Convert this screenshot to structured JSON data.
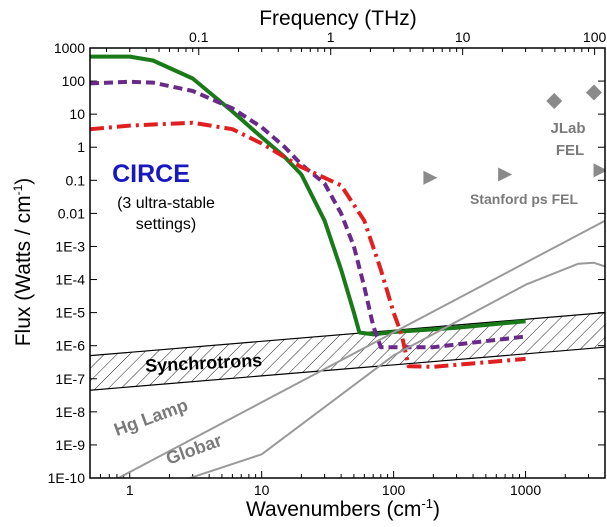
{
  "chart_data": {
    "type": "line",
    "x_scale": "log",
    "y_scale": "log",
    "xlabel": "Wavenumbers (cm⁻¹)",
    "ylabel": "Flux (Watts / cm⁻¹)",
    "top_axis_label": "Frequency (THz)",
    "xlim": [
      0.5,
      4000
    ],
    "ylim": [
      1e-10,
      1000
    ],
    "x_ticks": [
      {
        "value": 1,
        "label": "1"
      },
      {
        "value": 10,
        "label": "10"
      },
      {
        "value": 100,
        "label": "100"
      },
      {
        "value": 1000,
        "label": "1000"
      }
    ],
    "top_ticks": [
      {
        "value": 0.1,
        "label": "0.1"
      },
      {
        "value": 1,
        "label": "1"
      },
      {
        "value": 10,
        "label": "10"
      },
      {
        "value": 100,
        "label": "100"
      }
    ],
    "y_ticks": [
      {
        "value": 1000,
        "label": "1000"
      },
      {
        "value": 100,
        "label": "100"
      },
      {
        "value": 10,
        "label": "10"
      },
      {
        "value": 1,
        "label": "1"
      },
      {
        "value": 0.1,
        "label": "0.1"
      },
      {
        "value": 0.01,
        "label": "0.01"
      },
      {
        "value": 0.001,
        "label": "1E-3"
      },
      {
        "value": 0.0001,
        "label": "1E-4"
      },
      {
        "value": 1e-05,
        "label": "1E-5"
      },
      {
        "value": 1e-06,
        "label": "1E-6"
      },
      {
        "value": 1e-07,
        "label": "1E-7"
      },
      {
        "value": 1e-08,
        "label": "1E-8"
      },
      {
        "value": 1e-09,
        "label": "1E-9"
      },
      {
        "value": 1e-10,
        "label": "1E-10"
      }
    ],
    "series": [
      {
        "style": "solid",
        "color": "#1a7a1a",
        "points": [
          [
            0.5,
            550
          ],
          [
            1,
            550
          ],
          [
            1.5,
            420
          ],
          [
            3,
            120
          ],
          [
            6,
            12
          ],
          [
            10,
            2
          ],
          [
            15,
            0.5
          ],
          [
            20,
            0.15
          ],
          [
            30,
            0.006
          ],
          [
            40,
            0.0002
          ],
          [
            50,
            1e-05
          ],
          [
            55,
            2.5e-06
          ],
          [
            70,
            2.2e-06
          ],
          [
            100,
            2.6e-06
          ],
          [
            300,
            3.5e-06
          ],
          [
            1000,
            5.5e-06
          ]
        ]
      },
      {
        "style": "dashed",
        "color": "#6a2a8a",
        "points": [
          [
            0.5,
            85
          ],
          [
            1,
            95
          ],
          [
            1.5,
            90
          ],
          [
            3,
            50
          ],
          [
            6,
            15
          ],
          [
            10,
            4
          ],
          [
            15,
            1
          ],
          [
            20,
            0.3
          ],
          [
            30,
            0.08
          ],
          [
            40,
            0.01
          ],
          [
            50,
            0.001
          ],
          [
            60,
            6e-05
          ],
          [
            70,
            4e-06
          ],
          [
            80,
            9e-07
          ],
          [
            200,
            9e-07
          ],
          [
            1000,
            1.9e-06
          ]
        ]
      },
      {
        "style": "dash-dot",
        "color": "#e02020",
        "points": [
          [
            0.5,
            3.5
          ],
          [
            1,
            4.5
          ],
          [
            3,
            5.5
          ],
          [
            6,
            3.5
          ],
          [
            10,
            1.3
          ],
          [
            20,
            0.25
          ],
          [
            40,
            0.07
          ],
          [
            60,
            0.006
          ],
          [
            80,
            0.0002
          ],
          [
            100,
            1e-05
          ],
          [
            115,
            2.2e-06
          ],
          [
            130,
            2.4e-07
          ],
          [
            200,
            2.3e-07
          ],
          [
            1000,
            4e-07
          ]
        ]
      },
      {
        "name": "Hg Lamp",
        "style": "solid",
        "color": "#9a9a9a",
        "points": [
          [
            0.5,
            3.5e-11
          ],
          [
            4000,
            0.006
          ]
        ]
      },
      {
        "name": "Globar",
        "style": "solid",
        "color": "#9a9a9a",
        "points": [
          [
            0.5,
            1e-11
          ],
          [
            10,
            5.2e-10
          ],
          [
            100,
            5.1e-07
          ],
          [
            1000,
            7e-05
          ],
          [
            2500,
            0.0003
          ],
          [
            3300,
            0.00032
          ],
          [
            4000,
            0.00025
          ]
        ]
      }
    ],
    "bands": [
      {
        "name": "Synchrotrons",
        "pattern": "hatched",
        "upper": [
          [
            0.5,
            5e-07
          ],
          [
            4000,
            1e-05
          ]
        ],
        "lower": [
          [
            0.5,
            4.5e-08
          ],
          [
            4000,
            9e-07
          ]
        ]
      }
    ],
    "markers": [
      {
        "group": "JLab FEL",
        "shape": "diamond",
        "color": "#8a8a8a",
        "points": [
          [
            1650,
            25
          ],
          [
            3300,
            45
          ]
        ]
      },
      {
        "group": "Stanford ps FEL",
        "shape": "triangle-right",
        "color": "#8a8a8a",
        "points": [
          [
            190,
            0.12
          ],
          [
            700,
            0.15
          ],
          [
            3700,
            0.2
          ]
        ]
      }
    ],
    "annotations": {
      "circe": "CIRCE",
      "circe_sub1": "(3 ultra-stable",
      "circe_sub2": "settings)",
      "jlab1": "JLab",
      "jlab2": "FEL",
      "stanford": "Stanford ps FEL",
      "synchrotrons": "Synchrotrons",
      "hg_lamp": "Hg Lamp",
      "globar": "Globar"
    },
    "colors": {
      "circe": "#1818c0",
      "annotation_gray": "#7a7a7a"
    }
  }
}
